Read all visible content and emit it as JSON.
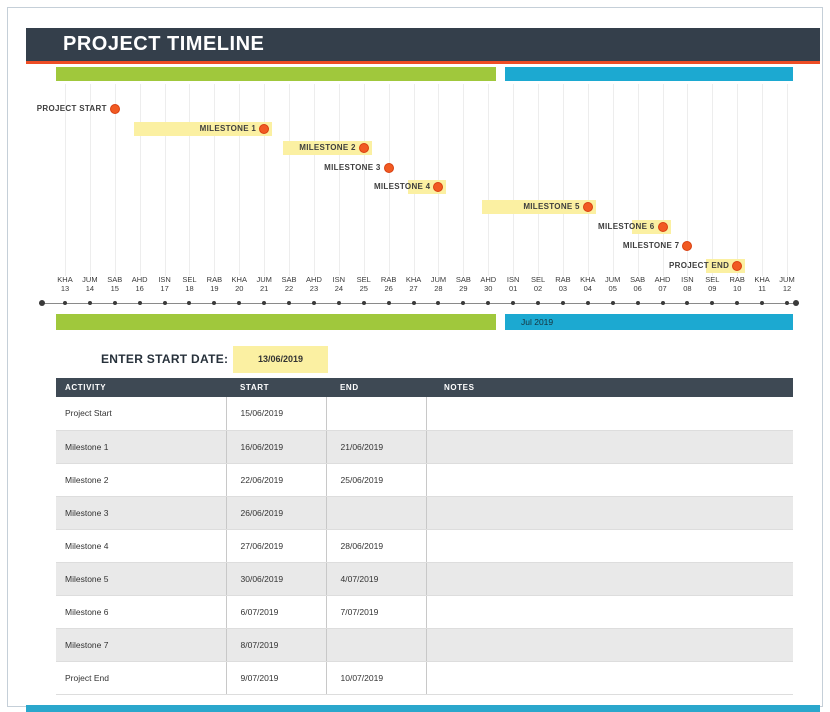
{
  "header": {
    "title": "PROJECT TIMELINE"
  },
  "chart": {
    "month_label_right": "Jul 2019",
    "ticks": [
      {
        "day": "KHA",
        "date": "13"
      },
      {
        "day": "JUM",
        "date": "14"
      },
      {
        "day": "SAB",
        "date": "15"
      },
      {
        "day": "AHD",
        "date": "16"
      },
      {
        "day": "ISN",
        "date": "17"
      },
      {
        "day": "SEL",
        "date": "18"
      },
      {
        "day": "RAB",
        "date": "19"
      },
      {
        "day": "KHA",
        "date": "20"
      },
      {
        "day": "JUM",
        "date": "21"
      },
      {
        "day": "SAB",
        "date": "22"
      },
      {
        "day": "AHD",
        "date": "23"
      },
      {
        "day": "ISN",
        "date": "24"
      },
      {
        "day": "SEL",
        "date": "25"
      },
      {
        "day": "RAB",
        "date": "26"
      },
      {
        "day": "KHA",
        "date": "27"
      },
      {
        "day": "JUM",
        "date": "28"
      },
      {
        "day": "SAB",
        "date": "29"
      },
      {
        "day": "AHD",
        "date": "30"
      },
      {
        "day": "ISN",
        "date": "01"
      },
      {
        "day": "SEL",
        "date": "02"
      },
      {
        "day": "RAB",
        "date": "03"
      },
      {
        "day": "KHA",
        "date": "04"
      },
      {
        "day": "JUM",
        "date": "05"
      },
      {
        "day": "SAB",
        "date": "06"
      },
      {
        "day": "AHD",
        "date": "07"
      },
      {
        "day": "ISN",
        "date": "08"
      },
      {
        "day": "SEL",
        "date": "09"
      },
      {
        "day": "RAB",
        "date": "10"
      },
      {
        "day": "KHA",
        "date": "11"
      },
      {
        "day": "JUM",
        "date": "12"
      }
    ],
    "milestones": [
      {
        "label": "PROJECT START",
        "start_tick": 3,
        "end_tick": 3
      },
      {
        "label": "MILESTONE 1",
        "start_tick": 4,
        "end_tick": 9
      },
      {
        "label": "MILESTONE 2",
        "start_tick": 10,
        "end_tick": 13
      },
      {
        "label": "MILESTONE 3",
        "start_tick": 14,
        "end_tick": 14
      },
      {
        "label": "MILESTONE 4",
        "start_tick": 15,
        "end_tick": 16
      },
      {
        "label": "MILESTONE 5",
        "start_tick": 18,
        "end_tick": 22
      },
      {
        "label": "MILESTONE 6",
        "start_tick": 24,
        "end_tick": 25
      },
      {
        "label": "MILESTONE 7",
        "start_tick": 26,
        "end_tick": 26
      },
      {
        "label": "PROJECT END",
        "start_tick": 27,
        "end_tick": 28
      }
    ],
    "colors": {
      "header_dark": "#343F4B",
      "accent_orange": "#EE4D25",
      "bar_green": "#A0C83C",
      "bar_blue": "#1CA9D1",
      "highlight_yellow": "#FBF0A2",
      "marker_orange": "#F15A22",
      "footer_teal": "#2BA7CC"
    }
  },
  "chart_data": {
    "type": "bar",
    "subtype": "gantt-timeline",
    "title": "PROJECT TIMELINE",
    "x_axis": {
      "start": "13/06/2019",
      "end": "12/07/2019",
      "tick_unit": "day",
      "day_labels": [
        "KHA",
        "JUM",
        "SAB",
        "AHD",
        "ISN",
        "SEL",
        "RAB"
      ]
    },
    "tasks": [
      {
        "name": "Project Start",
        "start": "15/06/2019",
        "end": ""
      },
      {
        "name": "Milestone 1",
        "start": "16/06/2019",
        "end": "21/06/2019"
      },
      {
        "name": "Milestone 2",
        "start": "22/06/2019",
        "end": "25/06/2019"
      },
      {
        "name": "Milestone 3",
        "start": "26/06/2019",
        "end": ""
      },
      {
        "name": "Milestone 4",
        "start": "27/06/2019",
        "end": "28/06/2019"
      },
      {
        "name": "Milestone 5",
        "start": "30/06/2019",
        "end": "4/07/2019"
      },
      {
        "name": "Milestone 6",
        "start": "6/07/2019",
        "end": "7/07/2019"
      },
      {
        "name": "Milestone 7",
        "start": "8/07/2019",
        "end": ""
      },
      {
        "name": "Project End",
        "start": "9/07/2019",
        "end": "10/07/2019"
      }
    ],
    "month_bands": [
      {
        "label": "",
        "color": "#A0C83C"
      },
      {
        "label": "Jul 2019",
        "color": "#1CA9D1"
      }
    ]
  },
  "start_date": {
    "label": "ENTER START DATE:",
    "value": "13/06/2019"
  },
  "table": {
    "headers": [
      "ACTIVITY",
      "START",
      "END",
      "NOTES"
    ],
    "rows": [
      {
        "activity": "Project Start",
        "start": "15/06/2019",
        "end": "",
        "notes": ""
      },
      {
        "activity": "Milestone 1",
        "start": "16/06/2019",
        "end": "21/06/2019",
        "notes": ""
      },
      {
        "activity": "Milestone 2",
        "start": "22/06/2019",
        "end": "25/06/2019",
        "notes": ""
      },
      {
        "activity": "Milestone 3",
        "start": "26/06/2019",
        "end": "",
        "notes": ""
      },
      {
        "activity": "Milestone 4",
        "start": "27/06/2019",
        "end": "28/06/2019",
        "notes": ""
      },
      {
        "activity": "Milestone 5",
        "start": "30/06/2019",
        "end": "4/07/2019",
        "notes": ""
      },
      {
        "activity": "Milestone 6",
        "start": "6/07/2019",
        "end": "7/07/2019",
        "notes": ""
      },
      {
        "activity": "Milestone 7",
        "start": "8/07/2019",
        "end": "",
        "notes": ""
      },
      {
        "activity": "Project End",
        "start": "9/07/2019",
        "end": "10/07/2019",
        "notes": ""
      }
    ]
  }
}
